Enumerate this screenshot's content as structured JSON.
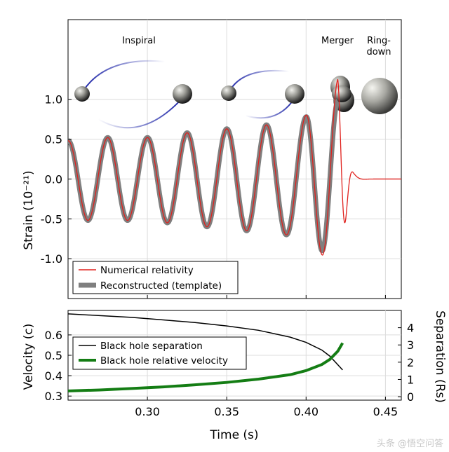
{
  "figure": {
    "annotations": [
      "Inspiral",
      "Merger",
      "Ring-",
      "down"
    ],
    "watermark": "头条 @悟空问答"
  },
  "chart_data": [
    {
      "type": "line",
      "panel": "strain",
      "title": "",
      "xlabel": "",
      "ylabel": "Strain (10⁻²¹)",
      "xlim": [
        0.25,
        0.46
      ],
      "ylim": [
        -1.5,
        2.0
      ],
      "yticks": [
        "1.0",
        "0.5",
        "0.0",
        "-0.5",
        "-1.0"
      ],
      "ytick_values": [
        1.0,
        0.5,
        0.0,
        -0.5,
        -1.0
      ],
      "grid": true,
      "legend_position": "bottom-left",
      "series": [
        {
          "name": "Numerical relativity",
          "color": "#e0211d",
          "linewidth": 1.3,
          "x": [
            0.25,
            0.2625,
            0.275,
            0.2875,
            0.3,
            0.3125,
            0.325,
            0.3375,
            0.35,
            0.3625,
            0.375,
            0.3875,
            0.4,
            0.41,
            0.42,
            0.425,
            0.43,
            0.44,
            0.46
          ],
          "y": [
            0.48,
            -0.52,
            0.52,
            -0.52,
            0.52,
            -0.55,
            0.58,
            -0.6,
            0.63,
            -0.65,
            0.68,
            -0.7,
            0.8,
            -0.95,
            1.25,
            -0.5,
            0.25,
            0.03,
            0.0
          ],
          "description_envelope": [
            0.48,
            0.5,
            0.52,
            0.56,
            0.62,
            0.7,
            0.85,
            1.25
          ]
        },
        {
          "name": "Reconstructed (template)",
          "color": "#7f7f7f",
          "linewidth": 7,
          "x": [
            0.25,
            0.2625,
            0.275,
            0.2875,
            0.3,
            0.3125,
            0.325,
            0.3375,
            0.35,
            0.3625,
            0.375,
            0.3875,
            0.4,
            0.41,
            0.42
          ],
          "y": [
            0.48,
            -0.52,
            0.52,
            -0.52,
            0.52,
            -0.55,
            0.58,
            -0.6,
            0.63,
            -0.65,
            0.68,
            -0.7,
            0.78,
            -0.9,
            0.98
          ]
        }
      ]
    },
    {
      "type": "line",
      "panel": "velocity-separation",
      "xlabel": "Time (s)",
      "ylabel": "Velocity (c)",
      "ylabel_right": "Separation (Rs)",
      "xlim": [
        0.25,
        0.46
      ],
      "xticks": [
        "0.30",
        "0.35",
        "0.40",
        "0.45"
      ],
      "xtick_values": [
        0.3,
        0.35,
        0.4,
        0.45
      ],
      "ylim": [
        0.28,
        0.72
      ],
      "yticks": [
        "0.6",
        "0.5",
        "0.4",
        "0.3"
      ],
      "ytick_values": [
        0.6,
        0.5,
        0.4,
        0.3
      ],
      "ylim_right": [
        -0.2,
        5.0
      ],
      "yticks_right": [
        "4",
        "3",
        "2",
        "1",
        "0"
      ],
      "ytick_values_right": [
        4,
        3,
        2,
        1,
        0
      ],
      "grid": true,
      "legend_position": "top-left",
      "series": [
        {
          "name": "Black hole separation",
          "color": "#000000",
          "linewidth": 1.5,
          "axis": "right",
          "x": [
            0.25,
            0.27,
            0.29,
            0.31,
            0.33,
            0.35,
            0.37,
            0.39,
            0.4,
            0.41,
            0.415,
            0.42,
            0.423
          ],
          "y": [
            4.8,
            4.7,
            4.6,
            4.45,
            4.3,
            4.1,
            3.85,
            3.45,
            3.15,
            2.7,
            2.35,
            1.85,
            1.55
          ]
        },
        {
          "name": "Black hole relative velocity",
          "color": "#147d14",
          "linewidth": 4,
          "axis": "left",
          "x": [
            0.25,
            0.27,
            0.29,
            0.31,
            0.33,
            0.35,
            0.37,
            0.39,
            0.4,
            0.41,
            0.415,
            0.42,
            0.423
          ],
          "y": [
            0.325,
            0.33,
            0.337,
            0.345,
            0.355,
            0.367,
            0.383,
            0.405,
            0.425,
            0.455,
            0.48,
            0.52,
            0.56
          ]
        }
      ]
    }
  ]
}
